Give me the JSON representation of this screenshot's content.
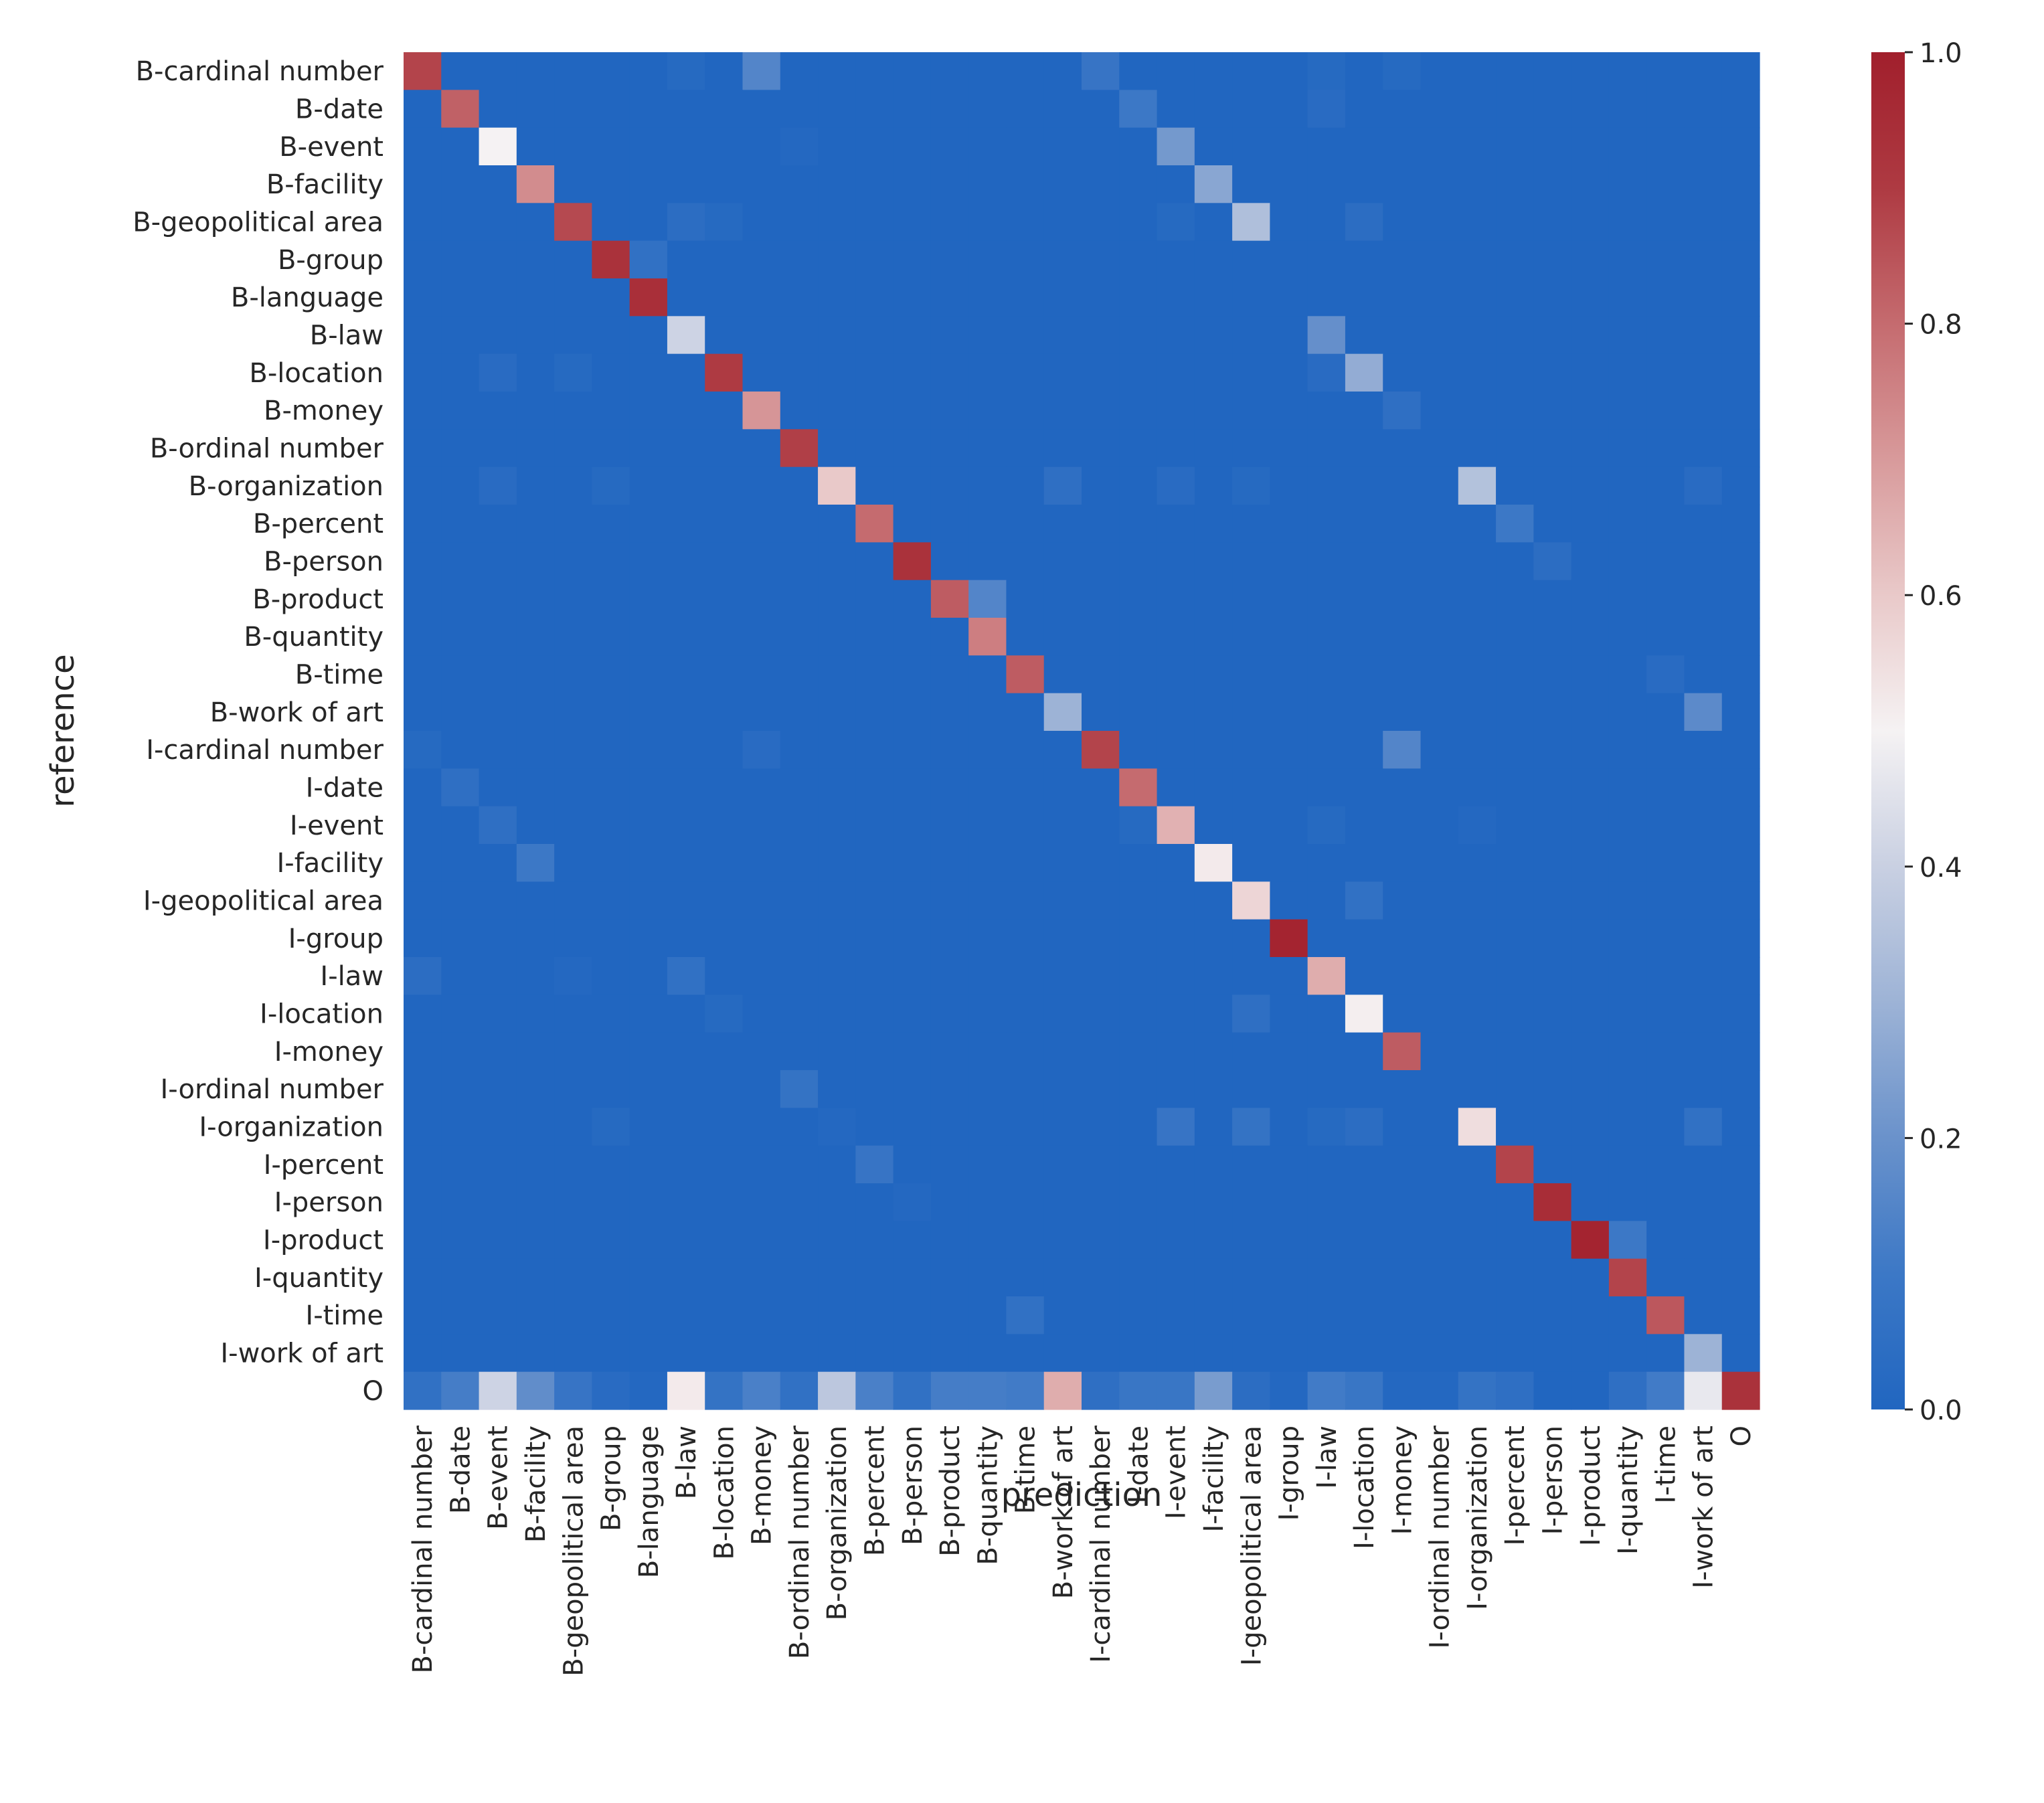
{
  "chart_data": {
    "type": "heatmap",
    "title": "",
    "xlabel": "prediction",
    "ylabel": "reference",
    "categories": [
      "B-cardinal number",
      "B-date",
      "B-event",
      "B-facility",
      "B-geopolitical area",
      "B-group",
      "B-language",
      "B-law",
      "B-location",
      "B-money",
      "B-ordinal number",
      "B-organization",
      "B-percent",
      "B-person",
      "B-product",
      "B-quantity",
      "B-time",
      "B-work of art",
      "I-cardinal number",
      "I-date",
      "I-event",
      "I-facility",
      "I-geopolitical area",
      "I-group",
      "I-law",
      "I-location",
      "I-money",
      "I-ordinal number",
      "I-organization",
      "I-percent",
      "I-person",
      "I-product",
      "I-quantity",
      "I-time",
      "I-work of art",
      "O"
    ],
    "colorbar": {
      "min": 0.0,
      "max": 1.0,
      "ticks": [
        "0.0",
        "0.2",
        "0.4",
        "0.6",
        "0.8",
        "1.0"
      ]
    },
    "colormap": [
      "#2166c0",
      "#3c78c6",
      "#6a92cb",
      "#9db3d6",
      "#c9d0e2",
      "#f5f2f3",
      "#e9c9c9",
      "#d89a9b",
      "#c56b6f",
      "#ae3a42",
      "#a11f2c"
    ],
    "colormap_stops": [
      0.0,
      0.1,
      0.2,
      0.3,
      0.4,
      0.5,
      0.6,
      0.7,
      0.8,
      0.9,
      1.0
    ],
    "cells": [
      {
        "row": 0,
        "col": 0,
        "v": 0.88
      },
      {
        "row": 0,
        "col": 7,
        "v": 0.02
      },
      {
        "row": 0,
        "col": 9,
        "v": 0.15
      },
      {
        "row": 0,
        "col": 18,
        "v": 0.08
      },
      {
        "row": 0,
        "col": 24,
        "v": 0.02
      },
      {
        "row": 0,
        "col": 26,
        "v": 0.02
      },
      {
        "row": 1,
        "col": 1,
        "v": 0.82
      },
      {
        "row": 1,
        "col": 19,
        "v": 0.1
      },
      {
        "row": 1,
        "col": 24,
        "v": 0.03
      },
      {
        "row": 2,
        "col": 2,
        "v": 0.5
      },
      {
        "row": 2,
        "col": 10,
        "v": 0.01
      },
      {
        "row": 2,
        "col": 20,
        "v": 0.22
      },
      {
        "row": 3,
        "col": 3,
        "v": 0.73
      },
      {
        "row": 3,
        "col": 21,
        "v": 0.26
      },
      {
        "row": 4,
        "col": 4,
        "v": 0.87
      },
      {
        "row": 4,
        "col": 7,
        "v": 0.04
      },
      {
        "row": 4,
        "col": 8,
        "v": 0.02
      },
      {
        "row": 4,
        "col": 20,
        "v": 0.02
      },
      {
        "row": 4,
        "col": 22,
        "v": 0.34
      },
      {
        "row": 4,
        "col": 25,
        "v": 0.04
      },
      {
        "row": 5,
        "col": 5,
        "v": 0.93
      },
      {
        "row": 5,
        "col": 6,
        "v": 0.06
      },
      {
        "row": 6,
        "col": 6,
        "v": 0.94
      },
      {
        "row": 7,
        "col": 7,
        "v": 0.41
      },
      {
        "row": 7,
        "col": 24,
        "v": 0.19
      },
      {
        "row": 8,
        "col": 2,
        "v": 0.03
      },
      {
        "row": 8,
        "col": 4,
        "v": 0.02
      },
      {
        "row": 8,
        "col": 8,
        "v": 0.9
      },
      {
        "row": 8,
        "col": 24,
        "v": 0.03
      },
      {
        "row": 8,
        "col": 25,
        "v": 0.28
      },
      {
        "row": 9,
        "col": 9,
        "v": 0.71
      },
      {
        "row": 9,
        "col": 26,
        "v": 0.05
      },
      {
        "row": 10,
        "col": 10,
        "v": 0.89
      },
      {
        "row": 11,
        "col": 2,
        "v": 0.03
      },
      {
        "row": 11,
        "col": 5,
        "v": 0.02
      },
      {
        "row": 11,
        "col": 11,
        "v": 0.6
      },
      {
        "row": 11,
        "col": 17,
        "v": 0.05
      },
      {
        "row": 11,
        "col": 20,
        "v": 0.03
      },
      {
        "row": 11,
        "col": 22,
        "v": 0.02
      },
      {
        "row": 11,
        "col": 28,
        "v": 0.35
      },
      {
        "row": 11,
        "col": 34,
        "v": 0.03
      },
      {
        "row": 12,
        "col": 12,
        "v": 0.8
      },
      {
        "row": 12,
        "col": 29,
        "v": 0.1
      },
      {
        "row": 13,
        "col": 13,
        "v": 0.93
      },
      {
        "row": 13,
        "col": 30,
        "v": 0.04
      },
      {
        "row": 14,
        "col": 14,
        "v": 0.83
      },
      {
        "row": 14,
        "col": 15,
        "v": 0.15
      },
      {
        "row": 15,
        "col": 15,
        "v": 0.76
      },
      {
        "row": 16,
        "col": 16,
        "v": 0.83
      },
      {
        "row": 16,
        "col": 33,
        "v": 0.03
      },
      {
        "row": 17,
        "col": 17,
        "v": 0.3
      },
      {
        "row": 17,
        "col": 34,
        "v": 0.17
      },
      {
        "row": 18,
        "col": 0,
        "v": 0.02
      },
      {
        "row": 18,
        "col": 9,
        "v": 0.03
      },
      {
        "row": 18,
        "col": 18,
        "v": 0.88
      },
      {
        "row": 18,
        "col": 26,
        "v": 0.15
      },
      {
        "row": 19,
        "col": 1,
        "v": 0.05
      },
      {
        "row": 19,
        "col": 19,
        "v": 0.8
      },
      {
        "row": 20,
        "col": 2,
        "v": 0.05
      },
      {
        "row": 20,
        "col": 19,
        "v": 0.02
      },
      {
        "row": 20,
        "col": 20,
        "v": 0.65
      },
      {
        "row": 20,
        "col": 24,
        "v": 0.02
      },
      {
        "row": 20,
        "col": 28,
        "v": 0.01
      },
      {
        "row": 21,
        "col": 3,
        "v": 0.1
      },
      {
        "row": 21,
        "col": 21,
        "v": 0.52
      },
      {
        "row": 22,
        "col": 22,
        "v": 0.57
      },
      {
        "row": 22,
        "col": 25,
        "v": 0.06
      },
      {
        "row": 23,
        "col": 23,
        "v": 0.98
      },
      {
        "row": 24,
        "col": 0,
        "v": 0.04
      },
      {
        "row": 24,
        "col": 4,
        "v": 0.01
      },
      {
        "row": 24,
        "col": 7,
        "v": 0.06
      },
      {
        "row": 24,
        "col": 24,
        "v": 0.66
      },
      {
        "row": 25,
        "col": 8,
        "v": 0.02
      },
      {
        "row": 25,
        "col": 22,
        "v": 0.05
      },
      {
        "row": 25,
        "col": 25,
        "v": 0.51
      },
      {
        "row": 26,
        "col": 26,
        "v": 0.83
      },
      {
        "row": 27,
        "col": 10,
        "v": 0.07
      },
      {
        "row": 28,
        "col": 5,
        "v": 0.02
      },
      {
        "row": 28,
        "col": 11,
        "v": 0.01
      },
      {
        "row": 28,
        "col": 20,
        "v": 0.08
      },
      {
        "row": 28,
        "col": 22,
        "v": 0.07
      },
      {
        "row": 28,
        "col": 24,
        "v": 0.02
      },
      {
        "row": 28,
        "col": 25,
        "v": 0.04
      },
      {
        "row": 28,
        "col": 28,
        "v": 0.55
      },
      {
        "row": 28,
        "col": 34,
        "v": 0.06
      },
      {
        "row": 29,
        "col": 12,
        "v": 0.08
      },
      {
        "row": 29,
        "col": 29,
        "v": 0.88
      },
      {
        "row": 30,
        "col": 13,
        "v": 0.01
      },
      {
        "row": 30,
        "col": 30,
        "v": 0.95
      },
      {
        "row": 31,
        "col": 31,
        "v": 0.98
      },
      {
        "row": 31,
        "col": 32,
        "v": 0.1
      },
      {
        "row": 32,
        "col": 32,
        "v": 0.88
      },
      {
        "row": 33,
        "col": 16,
        "v": 0.06
      },
      {
        "row": 33,
        "col": 33,
        "v": 0.84
      },
      {
        "row": 34,
        "col": 34,
        "v": 0.3
      },
      {
        "row": 35,
        "col": 0,
        "v": 0.06
      },
      {
        "row": 35,
        "col": 1,
        "v": 0.12
      },
      {
        "row": 35,
        "col": 2,
        "v": 0.41
      },
      {
        "row": 35,
        "col": 3,
        "v": 0.18
      },
      {
        "row": 35,
        "col": 4,
        "v": 0.08
      },
      {
        "row": 35,
        "col": 5,
        "v": 0.03
      },
      {
        "row": 35,
        "col": 6,
        "v": 0.01
      },
      {
        "row": 35,
        "col": 7,
        "v": 0.52
      },
      {
        "row": 35,
        "col": 8,
        "v": 0.07
      },
      {
        "row": 35,
        "col": 9,
        "v": 0.13
      },
      {
        "row": 35,
        "col": 10,
        "v": 0.06
      },
      {
        "row": 35,
        "col": 11,
        "v": 0.37
      },
      {
        "row": 35,
        "col": 12,
        "v": 0.13
      },
      {
        "row": 35,
        "col": 13,
        "v": 0.06
      },
      {
        "row": 35,
        "col": 14,
        "v": 0.12
      },
      {
        "row": 35,
        "col": 15,
        "v": 0.12
      },
      {
        "row": 35,
        "col": 16,
        "v": 0.11
      },
      {
        "row": 35,
        "col": 17,
        "v": 0.66
      },
      {
        "row": 35,
        "col": 18,
        "v": 0.05
      },
      {
        "row": 35,
        "col": 19,
        "v": 0.09
      },
      {
        "row": 35,
        "col": 20,
        "v": 0.09
      },
      {
        "row": 35,
        "col": 21,
        "v": 0.23
      },
      {
        "row": 35,
        "col": 22,
        "v": 0.04
      },
      {
        "row": 35,
        "col": 23,
        "v": 0.01
      },
      {
        "row": 35,
        "col": 24,
        "v": 0.11
      },
      {
        "row": 35,
        "col": 25,
        "v": 0.09
      },
      {
        "row": 35,
        "col": 26,
        "v": 0.01
      },
      {
        "row": 35,
        "col": 27,
        "v": 0.01
      },
      {
        "row": 35,
        "col": 28,
        "v": 0.07
      },
      {
        "row": 35,
        "col": 29,
        "v": 0.05
      },
      {
        "row": 35,
        "col": 32,
        "v": 0.05
      },
      {
        "row": 35,
        "col": 33,
        "v": 0.11
      },
      {
        "row": 35,
        "col": 34,
        "v": 0.47
      },
      {
        "row": 35,
        "col": 35,
        "v": 0.93
      }
    ]
  }
}
